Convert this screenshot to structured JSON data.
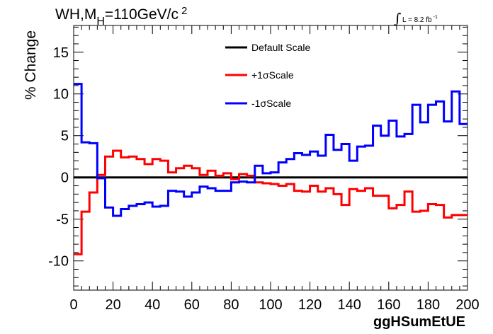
{
  "chart_data": {
    "type": "line",
    "style": "step",
    "title": "WH,M_H=110GeV/c 2",
    "title_parts": {
      "main": "WH,M",
      "sub": "H",
      "rest": "=110GeV/c",
      "sup": "2"
    },
    "annotation": {
      "integral": "∫",
      "text": "L = 8.2 fb",
      "sup": "-1"
    },
    "xlabel": "ggHSumEtUE",
    "ylabel": "% Change",
    "xlim": [
      0,
      200
    ],
    "ylim": [
      -13.5,
      18.2
    ],
    "xticks": [
      "0",
      "20",
      "40",
      "60",
      "80",
      "100",
      "120",
      "140",
      "160",
      "180",
      "200"
    ],
    "yticks": [
      "-10",
      "-5",
      "0",
      "5",
      "10",
      "15"
    ],
    "bin_width": 4,
    "x_bin_edges_start": 0,
    "legend_position": "top-center",
    "series": [
      {
        "name": "Default Scale",
        "color": "#000000",
        "values": [
          0,
          0,
          0,
          0,
          0,
          0,
          0,
          0,
          0,
          0,
          0,
          0,
          0,
          0,
          0,
          0,
          0,
          0,
          0,
          0,
          0,
          0,
          0,
          0,
          0,
          0,
          0,
          0,
          0,
          0,
          0,
          0,
          0,
          0,
          0,
          0,
          0,
          0,
          0,
          0,
          0,
          0,
          0,
          0,
          0,
          0,
          0,
          0,
          0,
          0
        ]
      },
      {
        "name": "+1σScale",
        "color": "#ff0000",
        "values": [
          -9.2,
          -4.1,
          -1.8,
          0.3,
          2.5,
          3.2,
          2.4,
          2.5,
          2.2,
          1.6,
          2.2,
          2.0,
          0.6,
          1.1,
          1.4,
          1.1,
          0.3,
          0.8,
          0.2,
          0.5,
          -0.2,
          0.4,
          0.2,
          -0.6,
          -0.7,
          -0.8,
          -1.0,
          -0.8,
          -1.6,
          -1.7,
          -1.0,
          -1.7,
          -1.3,
          -2.0,
          -3.3,
          -1.4,
          -1.6,
          -1.3,
          -2.2,
          -2.2,
          -3.7,
          -3.3,
          -1.7,
          -4.1,
          -4.0,
          -3.2,
          -3.3,
          -4.8,
          -4.5,
          -4.5
        ]
      },
      {
        "name": "-1σScale",
        "color": "#0000ff",
        "values": [
          11.2,
          4.2,
          4.1,
          -0.1,
          -3.6,
          -4.6,
          -3.8,
          -3.4,
          -3.2,
          -3.0,
          -3.5,
          -3.4,
          -1.6,
          -1.7,
          -2.3,
          -1.8,
          -1.1,
          -1.3,
          -1.6,
          -1.6,
          -0.6,
          -0.5,
          -0.6,
          1.4,
          0.5,
          0.6,
          1.8,
          2.2,
          2.9,
          2.7,
          3.1,
          2.6,
          5.1,
          3.3,
          4.0,
          2.0,
          3.7,
          3.8,
          6.2,
          5.0,
          6.8,
          4.9,
          5.2,
          8.7,
          6.6,
          8.7,
          9.1,
          6.7,
          10.3,
          6.4
        ]
      }
    ]
  }
}
